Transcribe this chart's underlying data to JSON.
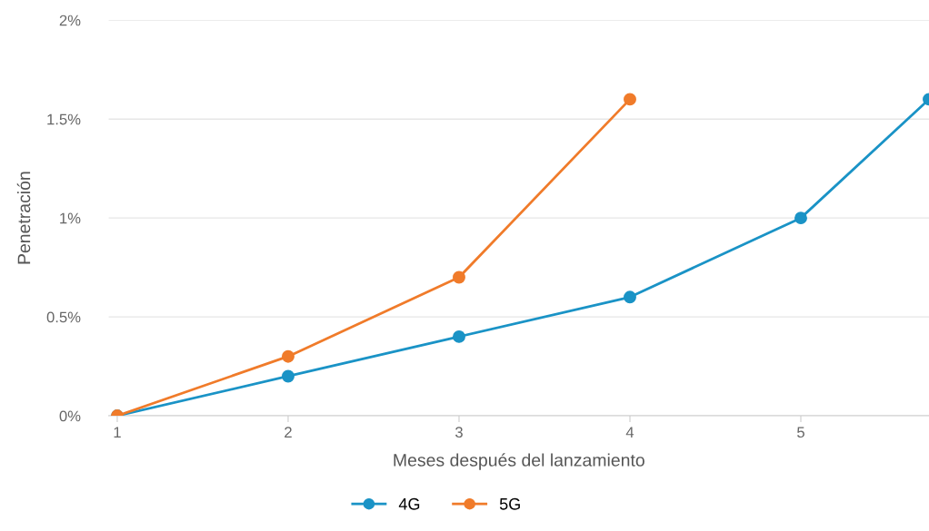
{
  "chart_data": {
    "type": "line",
    "xlabel": "Meses después del lanzamiento",
    "ylabel": "Penetración",
    "xlim": [
      0.95,
      5.75
    ],
    "xticks": [
      1,
      2,
      3,
      4,
      5
    ],
    "ylim": [
      0,
      2
    ],
    "yticks": [
      {
        "value": 0,
        "label": "0%"
      },
      {
        "value": 0.5,
        "label": "0.5%"
      },
      {
        "value": 1,
        "label": "1%"
      },
      {
        "value": 1.5,
        "label": "1.5%"
      },
      {
        "value": 2,
        "label": "2%"
      }
    ],
    "grid": "y",
    "legend": "bottom",
    "marker": "circle",
    "line_style": "solid",
    "series": [
      {
        "name": "4G",
        "color": "#1a93c6",
        "x": [
          1,
          2,
          3,
          4,
          5,
          5.75
        ],
        "values": [
          0,
          0.2,
          0.4,
          0.6,
          1.0,
          1.6
        ]
      },
      {
        "name": "5G",
        "color": "#f07b2a",
        "x": [
          1,
          2,
          3,
          4
        ],
        "values": [
          0,
          0.3,
          0.7,
          1.6
        ]
      }
    ]
  }
}
